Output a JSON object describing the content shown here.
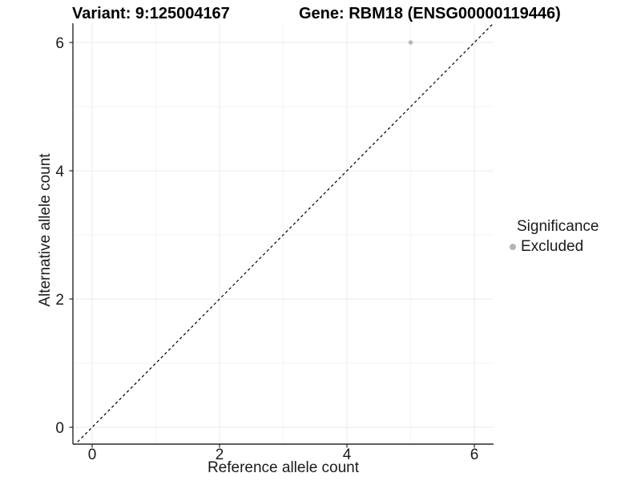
{
  "chart_data": {
    "type": "scatter",
    "title_left": "Variant: 9:125004167",
    "title_right": "Gene: RBM18 (ENSG00000119446)",
    "xlabel": "Reference allele count",
    "ylabel": "Alternative allele count",
    "xlim": [
      -0.3,
      6.3
    ],
    "ylim": [
      -0.27,
      6.3
    ],
    "x_ticks": [
      0,
      2,
      4,
      6
    ],
    "y_ticks": [
      0,
      2,
      4,
      6
    ],
    "x_minor_ticks": [
      1,
      3,
      5
    ],
    "y_minor_ticks": [
      1,
      3,
      5
    ],
    "grid": true,
    "legend_position": "right",
    "legend_title": "Significance",
    "series": [
      {
        "name": "Excluded",
        "color": "#b4b4b4",
        "points": [
          {
            "x": 5,
            "y": 6
          }
        ]
      }
    ],
    "reference_line": {
      "type": "identity",
      "slope": 1,
      "intercept": 0,
      "style": "dashed",
      "color": "#000000"
    }
  },
  "style_colors": {
    "grid_major": "#ebebeb",
    "grid_minor": "#f3f3f3",
    "axis_line": "#282828",
    "tick_text": "#1a1a1a"
  }
}
